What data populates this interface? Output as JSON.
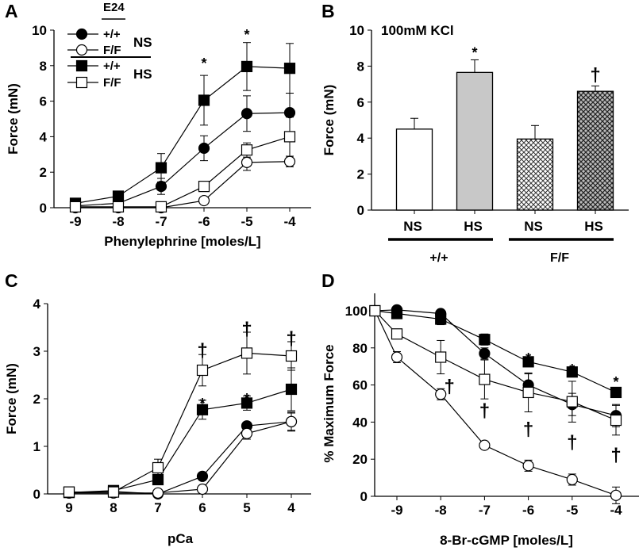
{
  "chart_data": [
    {
      "panel": "A",
      "type": "line",
      "xlabel": "Phenylephrine [moles/L]",
      "ylabel": "Force (mN)",
      "xticks": [
        -9,
        -8,
        -7,
        -6,
        -5,
        -4
      ],
      "yticks": [
        0,
        2,
        4,
        6,
        8,
        10
      ],
      "ylim": [
        0,
        10
      ],
      "legend": {
        "header": "E24",
        "entries": [
          {
            "label": "+/+",
            "group": "NS",
            "marker": "filled-circle"
          },
          {
            "label": "F/F",
            "group": "NS",
            "marker": "open-circle"
          },
          {
            "label": "+/+",
            "group": "HS",
            "marker": "filled-square"
          },
          {
            "label": "F/F",
            "group": "HS",
            "marker": "open-square"
          }
        ],
        "groups": [
          "NS",
          "HS"
        ],
        "placement": "top-left"
      },
      "x": [
        -9,
        -8,
        -7,
        -6,
        -5,
        -4
      ],
      "series": [
        {
          "name": "+/+ NS",
          "marker": "filled-circle",
          "values": [
            0.1,
            0.25,
            1.2,
            3.35,
            5.3,
            5.35
          ],
          "err": [
            0,
            0,
            0.45,
            0.7,
            1.0,
            1.1
          ]
        },
        {
          "name": "F/F NS",
          "marker": "open-circle",
          "values": [
            0.0,
            0.0,
            0.0,
            0.4,
            2.55,
            2.6
          ],
          "err": [
            0,
            0,
            0,
            0,
            0.45,
            0.3
          ]
        },
        {
          "name": "+/+ HS",
          "marker": "filled-square",
          "values": [
            0.25,
            0.65,
            2.25,
            6.05,
            7.95,
            7.85
          ],
          "err": [
            0,
            0,
            0.8,
            1.4,
            1.35,
            1.4
          ]
        },
        {
          "name": "F/F HS",
          "marker": "open-square",
          "values": [
            0.05,
            0.05,
            0.05,
            1.2,
            3.25,
            4.0
          ],
          "err": [
            0,
            0,
            0,
            0.2,
            0.4,
            1.1
          ]
        }
      ],
      "annotations": [
        {
          "text": "*",
          "x": -6,
          "y": 8.4
        },
        {
          "text": "*",
          "x": -5,
          "y": 10.0
        }
      ]
    },
    {
      "panel": "B",
      "type": "bar",
      "title": "100mM KCl",
      "ylabel": "Force (mN)",
      "yticks": [
        0,
        2,
        4,
        6,
        8,
        10
      ],
      "ylim": [
        0,
        10
      ],
      "categories": [
        "NS",
        "HS",
        "NS",
        "HS"
      ],
      "groups": [
        {
          "label": "+/+",
          "span": [
            0,
            1
          ]
        },
        {
          "label": "F/F",
          "span": [
            2,
            3
          ]
        }
      ],
      "values": [
        4.5,
        7.65,
        3.95,
        6.6
      ],
      "err": [
        0.6,
        0.7,
        0.75,
        0.3
      ],
      "fills": [
        "white",
        "gray",
        "crosshatch-light",
        "crosshatch-dark"
      ],
      "annotations": [
        {
          "text": "*",
          "bar": 1,
          "y": 9.0
        },
        {
          "text": "†",
          "bar": 3,
          "y": 7.6
        }
      ]
    },
    {
      "panel": "C",
      "type": "line",
      "xlabel": "pCa",
      "ylabel": "Force (mN)",
      "xticks": [
        9,
        8,
        7,
        6,
        5,
        4
      ],
      "yticks": [
        0,
        1,
        2,
        3,
        4
      ],
      "ylim": [
        0,
        4
      ],
      "x": [
        9,
        8,
        7,
        6,
        5,
        4
      ],
      "series": [
        {
          "name": "+/+ NS",
          "marker": "filled-circle",
          "values": [
            0.02,
            0.05,
            0.0,
            0.37,
            1.43,
            1.52
          ],
          "err": [
            0,
            0,
            0,
            0.05,
            0.05,
            0.2
          ]
        },
        {
          "name": "F/F NS",
          "marker": "open-circle",
          "values": [
            0.02,
            0.02,
            0.02,
            0.1,
            1.27,
            1.52
          ],
          "err": [
            0,
            0,
            0,
            0,
            0.12,
            0.18
          ]
        },
        {
          "name": "+/+ HS",
          "marker": "filled-square",
          "values": [
            0.03,
            0.07,
            0.3,
            1.77,
            1.91,
            2.2
          ],
          "err": [
            0,
            0,
            0,
            0.2,
            0.15,
            0.45
          ]
        },
        {
          "name": "F/F HS",
          "marker": "open-square",
          "values": [
            0.04,
            0.04,
            0.55,
            2.6,
            2.96,
            2.9
          ],
          "err": [
            0,
            0,
            0.18,
            0.33,
            0.44,
            0.3
          ]
        }
      ],
      "annotations": [
        {
          "text": "†",
          "x": 6,
          "y": 3.05
        },
        {
          "text": "†",
          "x": 5,
          "y": 3.5
        },
        {
          "text": "†",
          "x": 4,
          "y": 3.3
        },
        {
          "text": "*",
          "x": 6,
          "y": 2.0
        },
        {
          "text": "*",
          "x": 5,
          "y": 2.1
        }
      ]
    },
    {
      "panel": "D",
      "type": "line",
      "xlabel": "8-Br-cGMP [moles/L]",
      "ylabel": "% Maximum Force",
      "xticks": [
        -9,
        -8,
        -7,
        -6,
        -5,
        -4
      ],
      "yticks": [
        0,
        20,
        40,
        60,
        80,
        100
      ],
      "ylim": [
        0,
        110
      ],
      "xlim": [
        -9.5,
        -3.5
      ],
      "x": [
        -9.5,
        -9,
        -8,
        -7,
        -6,
        -5,
        -4
      ],
      "series": [
        {
          "name": "+/+ NS",
          "marker": "filled-circle",
          "values": [
            100,
            100.5,
            98.5,
            77,
            60,
            49.5,
            43.5
          ],
          "err": [
            0,
            0,
            0,
            3,
            6,
            6,
            6
          ]
        },
        {
          "name": "F/F NS",
          "marker": "open-circle",
          "values": [
            100,
            75,
            55,
            27.5,
            16.5,
            9,
            0.5
          ],
          "err": [
            0,
            3,
            3,
            0,
            3,
            3,
            4.5
          ]
        },
        {
          "name": "+/+ HS",
          "marker": "filled-square",
          "values": [
            100,
            98.5,
            95.5,
            84.5,
            72.5,
            67,
            56
          ],
          "err": [
            0,
            0,
            3,
            3,
            0,
            0,
            0
          ]
        },
        {
          "name": "F/F HS",
          "marker": "open-square",
          "values": [
            100,
            87.5,
            75,
            63,
            56,
            51,
            41
          ],
          "err": [
            0,
            0,
            9,
            10.5,
            10.5,
            11,
            8
          ]
        }
      ],
      "annotations": [
        {
          "text": "*",
          "x": -6,
          "y": 77
        },
        {
          "text": "*",
          "x": -5,
          "y": 71
        },
        {
          "text": "*",
          "x": -4,
          "y": 64
        },
        {
          "text": "†",
          "x": -7.8,
          "y": 60
        },
        {
          "text": "†",
          "x": -7,
          "y": 47
        },
        {
          "text": "†",
          "x": -6,
          "y": 37
        },
        {
          "text": "†",
          "x": -5,
          "y": 30
        },
        {
          "text": "†",
          "x": -4,
          "y": 23
        }
      ]
    }
  ]
}
